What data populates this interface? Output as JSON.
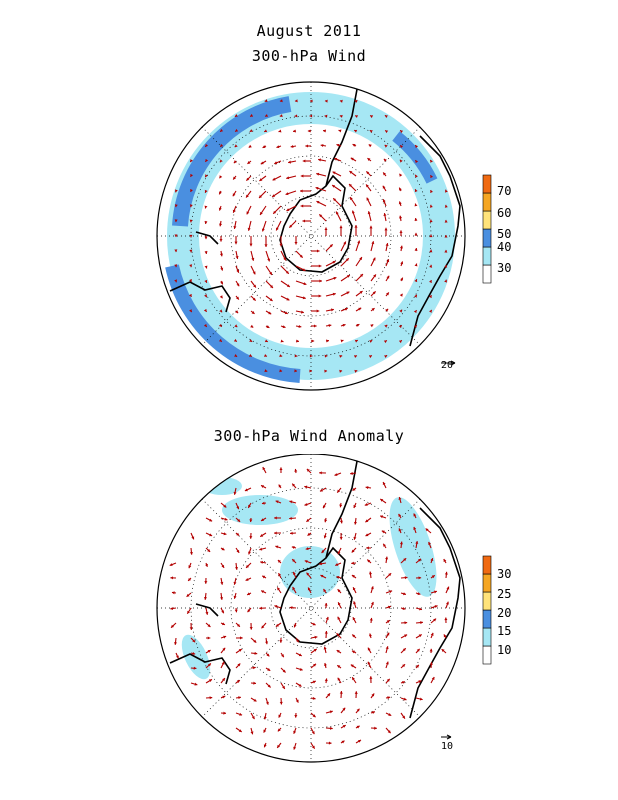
{
  "titles": {
    "date": "August 2011",
    "panel1": "300-hPa Wind",
    "panel2": "300-hPa Wind Anomaly"
  },
  "panels": [
    {
      "colorbar": {
        "labels": [
          "30",
          "40",
          "50",
          "60",
          "70"
        ],
        "colors": [
          "#ffffff",
          "#a6e7f4",
          "#4a8fe0",
          "#ffe37a",
          "#f5a623",
          "#f06a12"
        ]
      },
      "reference_vector": "20"
    },
    {
      "colorbar": {
        "labels": [
          "10",
          "15",
          "20",
          "25",
          "30"
        ],
        "colors": [
          "#ffffff",
          "#a6e7f4",
          "#4a8fe0",
          "#ffe37a",
          "#f5a623",
          "#f06a12"
        ]
      },
      "reference_vector": "10"
    }
  ],
  "colors": {
    "arrow": "#b30000",
    "coast": "#000000",
    "grid": "#000000"
  }
}
